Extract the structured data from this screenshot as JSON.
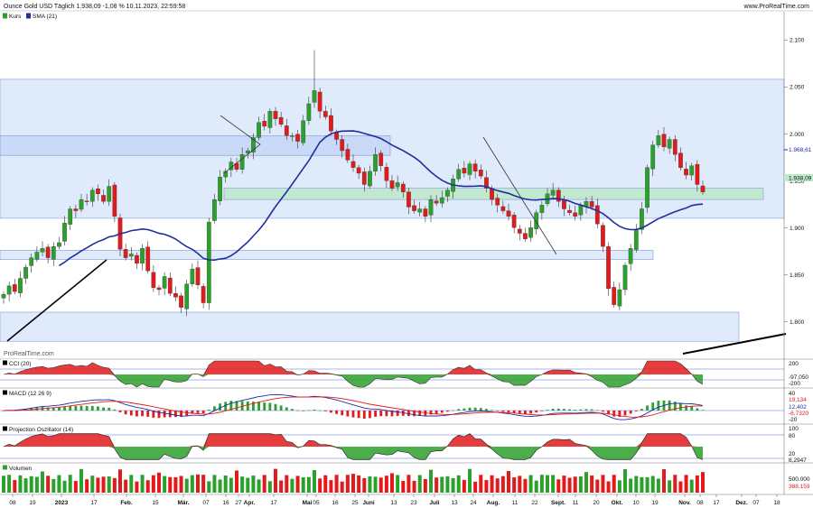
{
  "header": {
    "title": "Ounce Gold USD Täglich 1.938,09 -1,08 % 10.11.2023, 22:59:58",
    "source": "www.ProRealTime.com"
  },
  "watermark": "ProRealTime.com",
  "colors": {
    "up": "#2ca02c",
    "down": "#e31a1c",
    "sma": "#1f2fa0",
    "zone_blue_fill": "#dce8fb",
    "zone_blue_dark": "#c6d9f7",
    "zone_green_fill": "#bfe9cb",
    "grid_border": "#7a8fd6",
    "indicator_pos": "#e31a1c",
    "indicator_neg": "#2ca02c"
  },
  "price_panel": {
    "legend": [
      {
        "label": "Kurs",
        "swatch": "candles"
      },
      {
        "label": "SMA (21)",
        "swatch": "#1f2fa0"
      }
    ],
    "y_ticks": [
      "2.100",
      "2.050",
      "2.000",
      "1.950",
      "1.900",
      "1.850",
      "1.800"
    ],
    "sma_label": "1.968,61",
    "last_label": "1.938,09"
  },
  "cci_panel": {
    "legend": "CCI (20)",
    "y_ticks": [
      "200",
      "-200"
    ],
    "value_label": "-97,050"
  },
  "macd_panel": {
    "legend": "MACD (12 26 9)",
    "y_ticks": [
      "40",
      "20",
      "-20"
    ],
    "labels": [
      "19,134",
      "12,402",
      "-6,7320"
    ]
  },
  "proj_panel": {
    "legend": "Projection Oszillator (14)",
    "y_ticks": [
      "100",
      "80",
      "20"
    ],
    "value_label": "8,2947"
  },
  "volume_panel": {
    "legend": "Volumen",
    "y_ticks": [
      "500.000"
    ],
    "value_label": "388.159"
  },
  "x_axis": {
    "labels": [
      "08",
      "19",
      "2023",
      "17",
      "Feb.",
      "15",
      "Mär.",
      "07",
      "16",
      "27",
      "Apr.",
      "17",
      "Mai",
      "05",
      "16",
      "25",
      "Juni",
      "13",
      "23",
      "Juli",
      "13",
      "24",
      "Aug.",
      "11",
      "22",
      "Sept.",
      "11",
      "20",
      "Okt.",
      "10",
      "19",
      "Nov.",
      "08",
      "17",
      "Dez.",
      "07",
      "18"
    ]
  },
  "chart_data": {
    "type": "candlestick",
    "title": "Ounce Gold USD Täglich 1.938,09 -1,08 % 10.11.2023, 22:59:58",
    "ylim": [
      1760,
      2130
    ],
    "y_ticks": [
      2100,
      2050,
      2000,
      1950,
      1900,
      1850,
      1800
    ],
    "ohlc_close": [
      1829,
      1838,
      1832,
      1846,
      1858,
      1868,
      1874,
      1878,
      1868,
      1880,
      1884,
      1905,
      1920,
      1918,
      1930,
      1928,
      1940,
      1936,
      1928,
      1944,
      1912,
      1877,
      1868,
      1872,
      1862,
      1878,
      1854,
      1836,
      1834,
      1848,
      1830,
      1826,
      1815,
      1840,
      1856,
      1839,
      1820,
      1906,
      1930,
      1954,
      1960,
      1970,
      1962,
      1978,
      1982,
      1996,
      2012,
      2008,
      2024,
      2016,
      2010,
      1998,
      1998,
      1992,
      2014,
      2032,
      2046,
      2024,
      2018,
      2003,
      1994,
      1982,
      1972,
      1964,
      1958,
      1946,
      1960,
      1978,
      1966,
      1950,
      1942,
      1948,
      1938,
      1922,
      1918,
      1920,
      1912,
      1930,
      1926,
      1932,
      1940,
      1952,
      1962,
      1958,
      1968,
      1960,
      1955,
      1942,
      1930,
      1924,
      1918,
      1912,
      1900,
      1894,
      1888,
      1900,
      1916,
      1924,
      1936,
      1940,
      1928,
      1920,
      1916,
      1912,
      1924,
      1928,
      1922,
      1904,
      1880,
      1835,
      1818,
      1834,
      1860,
      1878,
      1898,
      1920,
      1964,
      1988,
      1998,
      1986,
      1994,
      1978,
      1964,
      1956,
      1966,
      1946,
      1938
    ],
    "sma21_last": 1968.61,
    "last_close": 1938.09,
    "series": [
      {
        "name": "SMA (21)",
        "last": 1968.61
      }
    ],
    "zones": [
      {
        "from": 1910,
        "to": 2058,
        "kind": "blue"
      },
      {
        "from": 1977,
        "to": 1998,
        "kind": "blue-dark"
      },
      {
        "from": 1930,
        "to": 1942,
        "kind": "green"
      },
      {
        "from": 1866,
        "to": 1876,
        "kind": "blue"
      },
      {
        "from": 1779,
        "to": 1810,
        "kind": "blue"
      }
    ],
    "indicators": {
      "cci_last": -97.05,
      "macd": {
        "macd": 19.134,
        "signal": 12.402,
        "histogram": -6.732
      },
      "projection_oscillator_last": 8.2947,
      "volume_last": 388159
    }
  }
}
